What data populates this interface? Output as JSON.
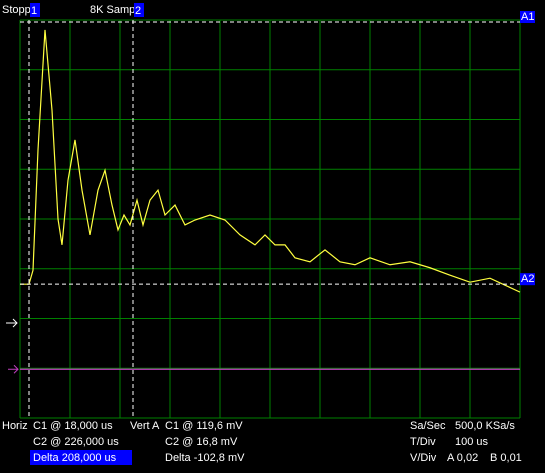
{
  "header": {
    "status": "Stopp",
    "cursor1": "1",
    "mode": "8K Samp",
    "cursor2": "2"
  },
  "markers": {
    "a1": "A1",
    "a2": "A2"
  },
  "readout": {
    "horiz": "Horiz",
    "c1_time": "C1 @ 18,000 us",
    "c2_time": "C2 @ 226,000 us",
    "delta_time": "Delta 208,000 us",
    "vert": "Vert A",
    "c1_volt": "C1 @ 119,6 mV",
    "c2_volt": "C2 @ 16,8 mV",
    "delta_volt": "Delta -102,8 mV",
    "sa_label": "Sa/Sec",
    "sa_value": "500,0 KSa/s",
    "tdiv_label": "T/Div",
    "tdiv_value": "100 us",
    "vdiv_label": "V/Div",
    "vdiv_a": "A 0,02",
    "vdiv_b": "B 0,01"
  },
  "chart_data": {
    "type": "line",
    "xlim": [
      0,
      10
    ],
    "ylim": [
      -4,
      4
    ],
    "xticks": [
      0,
      1,
      2,
      3,
      4,
      5,
      6,
      7,
      8,
      9,
      10
    ],
    "yticks": [
      -4,
      -3,
      -2,
      -1,
      0,
      1,
      2,
      3,
      4
    ],
    "grid": true,
    "series": [
      {
        "color": "#ffff40",
        "x": [
          0,
          0.18,
          0.26,
          0.36,
          0.5,
          0.64,
          0.76,
          0.84,
          0.96,
          1.1,
          1.24,
          1.4,
          1.56,
          1.7,
          1.84,
          1.96,
          2.08,
          2.2,
          2.34,
          2.46,
          2.6,
          2.76,
          2.9,
          3.1,
          3.3,
          3.5,
          3.8,
          4.1,
          4.4,
          4.7,
          4.9,
          5.1,
          5.3,
          5.5,
          5.8,
          6.1,
          6.4,
          6.7,
          7.0,
          7.4,
          7.8,
          8.2,
          8.6,
          9.0,
          9.4,
          9.7,
          10
        ],
        "values": [
          -1.31,
          -1.31,
          -1.03,
          1.39,
          3.8,
          2.19,
          0,
          -0.52,
          0.78,
          1.59,
          0.58,
          -0.32,
          0.58,
          0.98,
          0.28,
          -0.22,
          0.08,
          -0.12,
          0.38,
          -0.12,
          0.38,
          0.58,
          0.08,
          0.28,
          -0.12,
          -0.02,
          0.08,
          -0.02,
          -0.32,
          -0.52,
          -0.32,
          -0.52,
          -0.52,
          -0.78,
          -0.86,
          -0.62,
          -0.86,
          -0.92,
          -0.78,
          -0.92,
          -0.86,
          -0.98,
          -1.13,
          -1.27,
          -1.19,
          -1.33,
          -1.47
        ]
      },
      {
        "color": "#c040c0",
        "x": [
          0,
          10
        ],
        "values": [
          -3.02,
          -3.02
        ]
      }
    ],
    "cursors": {
      "x": [
        0.18,
        2.26
      ],
      "y": [
        3.96,
        -1.31
      ]
    }
  }
}
